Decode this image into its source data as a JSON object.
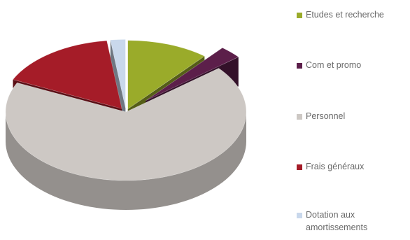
{
  "chart_data": {
    "type": "pie",
    "style": "3d-exploded",
    "title": "",
    "legend_position": "right",
    "slices": [
      {
        "label": "Etudes et recherche",
        "value": 11,
        "color": "#9aab2a"
      },
      {
        "label": "Com et promo",
        "value": 3,
        "color": "#5c1f4a"
      },
      {
        "label": "Personnel",
        "value": 68,
        "color": "#cdc8c4"
      },
      {
        "label": "Frais généraux",
        "value": 16,
        "color": "#a51c28"
      },
      {
        "label": "Dotation aux amortissements",
        "value": 2,
        "color": "#c9d8ec"
      }
    ],
    "legend_lines": [
      [
        "Etudes et recherche"
      ],
      [
        "Com et promo"
      ],
      [
        "Personnel"
      ],
      [
        "Frais généraux"
      ],
      [
        "Dotation aux",
        "amortissements"
      ]
    ]
  }
}
